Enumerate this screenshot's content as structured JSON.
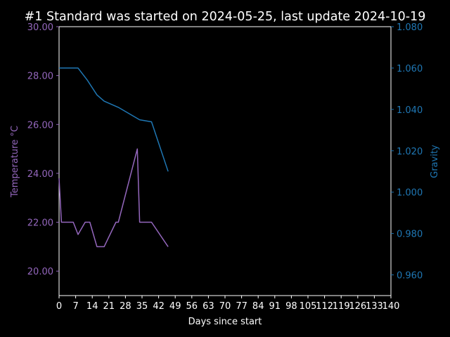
{
  "chart_data": {
    "type": "line",
    "title": "#1 Standard was started on 2024-05-25, last update 2024-10-19",
    "xlabel": "Days since start",
    "ylabel_left": "Temperature °C",
    "ylabel_right": "Gravity",
    "xlim": [
      0,
      140
    ],
    "ylim_left": [
      19.0,
      30.0
    ],
    "ylim_right": [
      0.95,
      1.08
    ],
    "x_ticks": [
      0,
      7,
      14,
      21,
      28,
      35,
      42,
      49,
      56,
      63,
      70,
      77,
      84,
      91,
      98,
      105,
      112,
      119,
      126,
      133,
      140
    ],
    "y_ticks_left": [
      "20.00",
      "22.00",
      "24.00",
      "26.00",
      "28.00",
      "30.00"
    ],
    "y_ticks_left_values": [
      20,
      22,
      24,
      26,
      28,
      30
    ],
    "y_ticks_right": [
      "0.960",
      "0.980",
      "1.000",
      "1.020",
      "1.040",
      "1.060",
      "1.080"
    ],
    "y_ticks_right_values": [
      0.96,
      0.98,
      1.0,
      1.02,
      1.04,
      1.06,
      1.08
    ],
    "grid": false,
    "series": [
      {
        "name": "Temperature °C",
        "axis": "left",
        "color": "#9467bd",
        "x": [
          0,
          1,
          6,
          8,
          11,
          13,
          16,
          19,
          24,
          25,
          33,
          34,
          39,
          46
        ],
        "y": [
          23.8,
          22.0,
          22.0,
          21.5,
          22.0,
          22.0,
          21.0,
          21.0,
          22.0,
          22.0,
          25.0,
          22.0,
          22.0,
          21.0
        ]
      },
      {
        "name": "Gravity",
        "axis": "right",
        "color": "#1f77b4",
        "x": [
          0,
          8,
          12,
          16,
          19,
          25,
          34,
          39,
          46
        ],
        "y": [
          1.06,
          1.06,
          1.054,
          1.047,
          1.044,
          1.041,
          1.035,
          1.034,
          1.01
        ]
      }
    ]
  }
}
